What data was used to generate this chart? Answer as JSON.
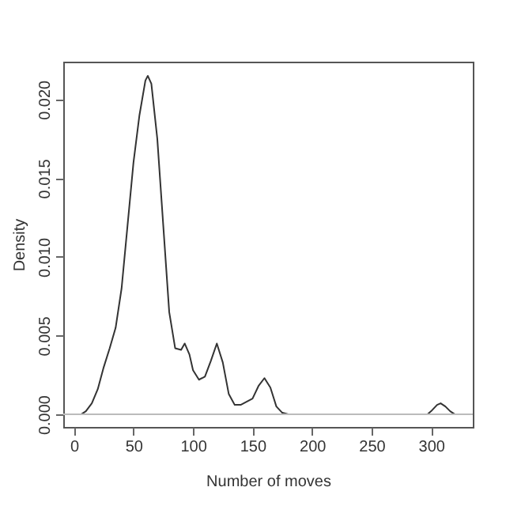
{
  "chart_data": {
    "type": "line",
    "xlabel": "Number of moves",
    "ylabel": "Density",
    "x": [
      6,
      10,
      15,
      20,
      25,
      30,
      35,
      40,
      45,
      50,
      55,
      60,
      62,
      65,
      70,
      75,
      80,
      85,
      90,
      93,
      97,
      100,
      105,
      110,
      115,
      120,
      125,
      130,
      135,
      140,
      145,
      150,
      155,
      160,
      165,
      170,
      175,
      180,
      297,
      300,
      305,
      308,
      312,
      316,
      320
    ],
    "series": [
      {
        "color": "#333333",
        "values": [
          0,
          0.0002,
          0.0007,
          0.0016,
          0.003,
          0.0042,
          0.0055,
          0.008,
          0.012,
          0.016,
          0.019,
          0.0212,
          0.0215,
          0.021,
          0.0175,
          0.012,
          0.0065,
          0.0042,
          0.0041,
          0.0045,
          0.0038,
          0.0028,
          0.0022,
          0.0024,
          0.0034,
          0.0045,
          0.0033,
          0.0013,
          0.0006,
          0.0006,
          0.0008,
          0.001,
          0.0018,
          0.0023,
          0.0017,
          0.0005,
          0.0001,
          0,
          0,
          0.0002,
          0.0006,
          0.0007,
          0.0005,
          0.0002,
          0
        ]
      }
    ],
    "xlim": [
      -9,
      335
    ],
    "xticks": [
      0,
      50,
      100,
      150,
      200,
      250,
      300
    ],
    "ylim": [
      -0.0008,
      0.0224
    ],
    "yticks": [
      {
        "value": 0,
        "label": "0.000"
      },
      {
        "value": 0.005,
        "label": "0.005"
      },
      {
        "value": 0.01,
        "label": "0.010"
      },
      {
        "value": 0.015,
        "label": "0.015"
      },
      {
        "value": 0.02,
        "label": "0.020"
      }
    ],
    "ref_lines": [
      {
        "axis": "y",
        "value": 0,
        "color": "#bbbbbb"
      }
    ],
    "grid": false
  }
}
